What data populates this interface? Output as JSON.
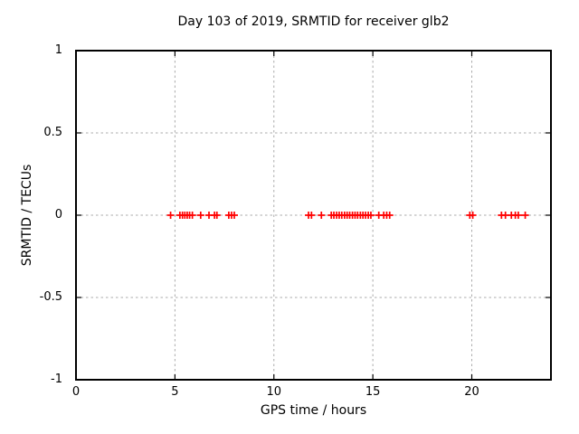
{
  "page": {
    "background": "#ffffff"
  },
  "chart_data": {
    "type": "scatter",
    "title": "Day 103 of 2019, SRMTID for receiver glb2",
    "xlabel": "GPS time / hours",
    "ylabel": "SRMTID / TECUs",
    "xlim": [
      0,
      24
    ],
    "ylim": [
      -1,
      1
    ],
    "xtick_values": [
      0,
      5,
      10,
      15,
      20
    ],
    "xtick_labels": [
      "0",
      "5",
      "10",
      "15",
      "20"
    ],
    "ytick_values": [
      1,
      0.5,
      0,
      -0.5,
      -1
    ],
    "ytick_labels": [
      "1",
      "0.5",
      "0",
      "-0.5",
      "-1"
    ],
    "grid": true,
    "legend_position": "none",
    "marker_style": "plus",
    "colors": {
      "marker": "#ff0000",
      "grid": "#ababab",
      "axis": "#000000",
      "text": "#000000"
    },
    "series": [
      {
        "name": "SRMTID",
        "x": [
          4.78,
          5.25,
          5.38,
          5.5,
          5.62,
          5.74,
          5.88,
          6.3,
          6.72,
          7.0,
          7.12,
          7.72,
          7.86,
          8.0,
          11.75,
          11.9,
          12.4,
          12.9,
          13.03,
          13.17,
          13.3,
          13.43,
          13.57,
          13.7,
          13.83,
          13.97,
          14.1,
          14.23,
          14.37,
          14.5,
          14.63,
          14.77,
          14.9,
          15.3,
          15.55,
          15.7,
          15.85,
          19.9,
          20.05,
          21.5,
          21.7,
          22.0,
          22.2,
          22.35,
          22.7
        ],
        "y": [
          0,
          0,
          0,
          0,
          0,
          0,
          0,
          0,
          0,
          0,
          0,
          0,
          0,
          0,
          0,
          0,
          0,
          0,
          0,
          0,
          0,
          0,
          0,
          0,
          0,
          0,
          0,
          0,
          0,
          0,
          0,
          0,
          0,
          0,
          0,
          0,
          0,
          0,
          0,
          0,
          0,
          0,
          0,
          0,
          0
        ]
      }
    ]
  }
}
